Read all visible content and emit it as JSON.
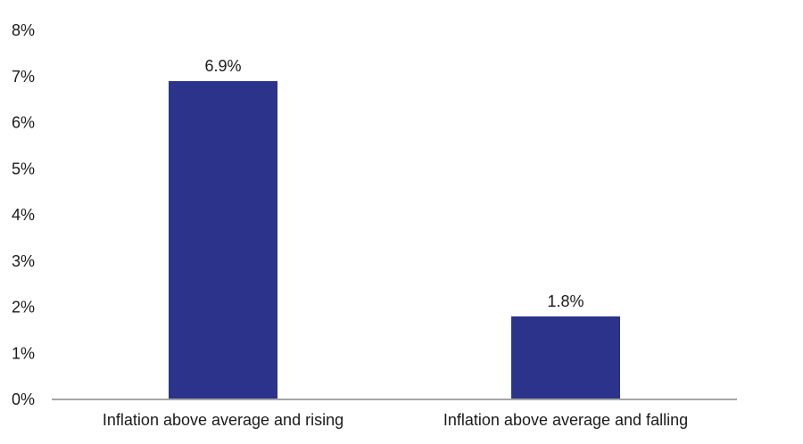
{
  "chart_data": {
    "type": "bar",
    "categories": [
      "Inflation above average and rising",
      "Inflation above average and falling"
    ],
    "values": [
      6.9,
      1.8
    ],
    "data_labels": [
      "6.9%",
      "1.8%"
    ],
    "title": "",
    "xlabel": "",
    "ylabel": "",
    "ylim": [
      0,
      8
    ],
    "y_ticks": [
      0,
      1,
      2,
      3,
      4,
      5,
      6,
      7,
      8
    ],
    "y_tick_labels": [
      "0%",
      "1%",
      "2%",
      "3%",
      "4%",
      "5%",
      "6%",
      "7%",
      "8%"
    ],
    "grid": false,
    "legend": "none",
    "colors": {
      "bar": "#2b338b",
      "axis": "#a6a6a6",
      "text": "#1a1a1a"
    }
  }
}
